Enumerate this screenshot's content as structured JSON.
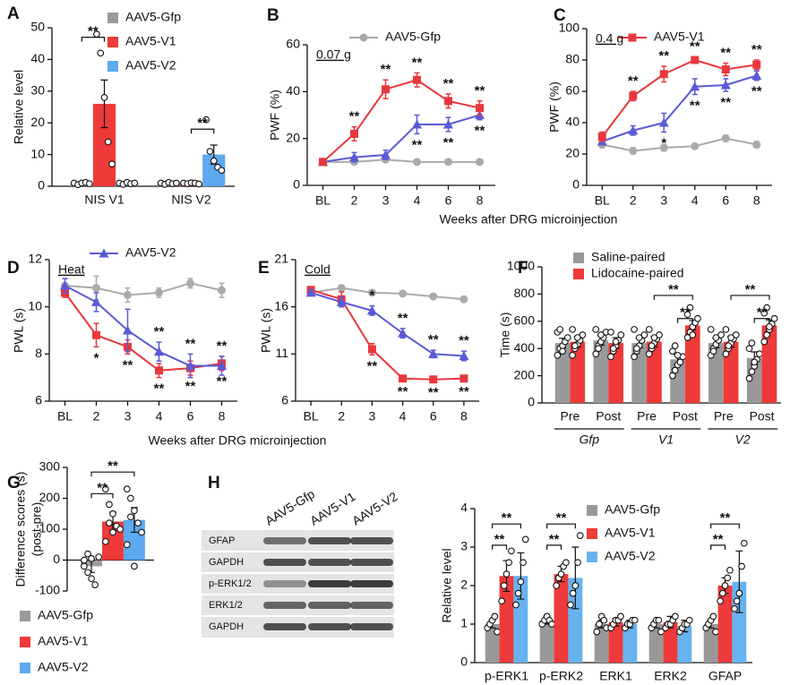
{
  "chart_data": [
    {
      "type": "bar",
      "panel": "A",
      "ylabel": "Relative level",
      "categories": [
        "NIS V1",
        "NIS V2"
      ],
      "series": [
        {
          "name": "AAV5-Gfp",
          "color": "#999999",
          "values": [
            1,
            1
          ],
          "errors": [
            0.3,
            0.3
          ],
          "points": [
            [
              1,
              0.5,
              1,
              1.2,
              0.8
            ],
            [
              1,
              0.6,
              1.2,
              0.8,
              1
            ]
          ]
        },
        {
          "name": "AAV5-V1",
          "color": "#ee3a3a",
          "values": [
            26,
            1
          ],
          "errors": [
            7.5,
            0.2
          ],
          "points": [
            [
              48,
              42,
              28,
              14,
              7
            ],
            [
              1,
              0.8,
              1.1,
              1,
              0.7
            ]
          ]
        },
        {
          "name": "AAV5-V2",
          "color": "#5ea9ef",
          "values": [
            1,
            10
          ],
          "errors": [
            0.3,
            3
          ],
          "points": [
            [
              1,
              0.6,
              1.2,
              0.8,
              1
            ],
            [
              21,
              11,
              8,
              6,
              5
            ]
          ]
        }
      ],
      "ylim": [
        0,
        50
      ],
      "yticks": [
        0,
        10,
        20,
        30,
        40,
        50
      ],
      "brackets": [
        "**",
        "**"
      ]
    },
    {
      "type": "line",
      "panel": "B",
      "ylabel": "PWF (%)",
      "annotation": "0.07 g",
      "xlabel": "Weeks after DRG microinjection",
      "categories": [
        "BL",
        "2",
        "3",
        "4",
        "6",
        "8"
      ],
      "series": [
        {
          "name": "AAV5-Gfp",
          "color": "#aaaaaa",
          "marker": "circle",
          "values": [
            10,
            10,
            11,
            10,
            10,
            10
          ],
          "errors": [
            1,
            1,
            1,
            0.5,
            0.5,
            0.5
          ]
        },
        {
          "color": "#5a5ad6",
          "marker": "triangle",
          "values": [
            10,
            12,
            13,
            26,
            26,
            30
          ],
          "errors": [
            1,
            2,
            2,
            4,
            3,
            2
          ],
          "labels": [
            null,
            null,
            null,
            "**",
            "**",
            "**"
          ]
        },
        {
          "color": "#e8383d",
          "marker": "square",
          "values": [
            10,
            22,
            41,
            45,
            36,
            33
          ],
          "errors": [
            1,
            3,
            4,
            3,
            3,
            3
          ],
          "labels": [
            null,
            "**",
            "**",
            "**",
            "**",
            "**"
          ]
        }
      ],
      "ylim": [
        0,
        60
      ],
      "yticks": [
        0,
        20,
        40,
        60
      ]
    },
    {
      "type": "line",
      "panel": "C",
      "ylabel": "PWF (%)",
      "annotation": "0.4 g",
      "categories": [
        "BL",
        "2",
        "3",
        "4",
        "6",
        "8"
      ],
      "series": [
        {
          "color": "#aaaaaa",
          "marker": "circle",
          "values": [
            26,
            22,
            24,
            25,
            30,
            26
          ],
          "errors": [
            2,
            2,
            2,
            1,
            2,
            2
          ]
        },
        {
          "color": "#5a5ad6",
          "marker": "triangle",
          "values": [
            28,
            35,
            40,
            63,
            64,
            70
          ],
          "errors": [
            2,
            3,
            6,
            5,
            4,
            3
          ],
          "labels": [
            null,
            null,
            "*",
            "**",
            "**",
            "**"
          ]
        },
        {
          "name": "AAV5-V1",
          "color": "#e8383d",
          "marker": "square",
          "values": [
            31,
            57,
            71,
            80,
            74,
            77
          ],
          "errors": [
            3,
            3,
            5,
            2,
            4,
            3
          ],
          "labels": [
            null,
            "**",
            "**",
            "**",
            "**",
            "**"
          ]
        }
      ],
      "ylim": [
        0,
        100
      ],
      "yticks": [
        0,
        20,
        40,
        60,
        80,
        100
      ]
    },
    {
      "type": "line",
      "panel": "D",
      "ylabel": "PWL (s)",
      "annotation": "Heat",
      "xlabel": "Weeks after DRG microinjection",
      "categories": [
        "BL",
        "2",
        "3",
        "4",
        "6",
        "8"
      ],
      "series": [
        {
          "color": "#aaaaaa",
          "marker": "circle",
          "values": [
            10.9,
            10.8,
            10.5,
            10.6,
            11.0,
            10.7
          ],
          "errors": [
            0.3,
            0.5,
            0.3,
            0.2,
            0.2,
            0.3
          ]
        },
        {
          "color": "#e8383d",
          "marker": "square",
          "values": [
            10.6,
            8.8,
            8.3,
            7.3,
            7.4,
            7.6
          ],
          "errors": [
            0.2,
            0.5,
            0.3,
            0.3,
            0.3,
            0.3
          ],
          "labels": [
            null,
            "*",
            "**",
            "**",
            "**",
            "**"
          ]
        },
        {
          "name": "AAV5-V2",
          "color": "#5a5ad6",
          "marker": "triangle",
          "values": [
            10.9,
            10.2,
            9.0,
            8.1,
            7.5,
            7.5
          ],
          "errors": [
            0.3,
            0.4,
            0.9,
            0.4,
            0.5,
            0.4
          ],
          "labels": [
            null,
            null,
            null,
            "**",
            "**",
            "**"
          ]
        }
      ],
      "ylim": [
        6,
        12
      ],
      "yticks": [
        6,
        8,
        10,
        12
      ]
    },
    {
      "type": "line",
      "panel": "E",
      "ylabel": "PWL (s)",
      "annotation": "Cold",
      "categories": [
        "BL",
        "2",
        "3",
        "4",
        "6",
        "8"
      ],
      "series": [
        {
          "color": "#aaaaaa",
          "marker": "circle",
          "values": [
            17.5,
            18,
            17.5,
            17.4,
            17.1,
            16.8
          ],
          "errors": [
            0.3,
            0.2,
            0.2,
            0.2,
            0.2,
            0.2
          ]
        },
        {
          "color": "#e8383d",
          "marker": "square",
          "values": [
            17.8,
            16.8,
            11.5,
            8.4,
            8.3,
            8.4
          ],
          "errors": [
            0.3,
            0.8,
            0.6,
            0.2,
            0.2,
            0.2
          ],
          "labels": [
            null,
            null,
            "**",
            "**",
            "**",
            "**"
          ]
        },
        {
          "color": "#5a5ad6",
          "marker": "triangle",
          "values": [
            17.5,
            16.5,
            15.6,
            13.2,
            11.0,
            10.8
          ],
          "errors": [
            0.3,
            0.5,
            0.5,
            0.5,
            0.4,
            0.5
          ],
          "labels": [
            null,
            null,
            "*",
            "**",
            "**",
            "**"
          ]
        }
      ],
      "ylim": [
        6,
        21
      ],
      "yticks": [
        6,
        11,
        16,
        21
      ]
    },
    {
      "type": "bar",
      "panel": "F",
      "ylabel": "Time (s)",
      "categories": [
        "Pre",
        "Post",
        "Pre",
        "Post",
        "Pre",
        "Post"
      ],
      "groups": [
        "Gfp",
        "V1",
        "V2"
      ],
      "series": [
        {
          "name": "Saline-paired",
          "color": "#999999",
          "values": [
            440,
            460,
            440,
            320,
            440,
            330
          ],
          "errors": [
            35,
            35,
            35,
            35,
            35,
            45
          ],
          "points": [
            [
              350,
              400,
              420,
              450,
              480,
              520,
              540,
              380
            ],
            [
              360,
              420,
              450,
              480,
              520,
              540,
              400,
              500
            ],
            [
              340,
              380,
              420,
              460,
              500,
              540,
              400,
              480
            ],
            [
              200,
              240,
              280,
              300,
              340,
              380,
              420,
              350
            ],
            [
              350,
              400,
              430,
              460,
              500,
              540,
              380,
              480
            ],
            [
              180,
              230,
              270,
              320,
              360,
              400,
              440,
              300
            ]
          ]
        },
        {
          "name": "Lidocaine-paired",
          "color": "#ee3a3a",
          "values": [
            450,
            440,
            450,
            570,
            450,
            570
          ],
          "errors": [
            40,
            40,
            40,
            35,
            40,
            40
          ],
          "points": [
            [
              350,
              400,
              430,
              460,
              500,
              540,
              420,
              480
            ],
            [
              340,
              380,
              420,
              460,
              500,
              520,
              400,
              450
            ],
            [
              360,
              400,
              440,
              470,
              500,
              540,
              420,
              480
            ],
            [
              480,
              520,
              560,
              590,
              620,
              650,
              700,
              500
            ],
            [
              360,
              400,
              440,
              470,
              500,
              540,
              420,
              480
            ],
            [
              450,
              500,
              540,
              580,
              620,
              660,
              700,
              560
            ]
          ]
        }
      ],
      "ylim": [
        0,
        1000
      ],
      "yticks": [
        0,
        200,
        400,
        600,
        800,
        1000
      ],
      "brackets": [
        "**",
        "**",
        "**",
        "**"
      ]
    },
    {
      "type": "bar",
      "panel": "G",
      "ylabel": "Difference scores (s)",
      "ylabel2": "(post-pre)",
      "series": [
        {
          "name": "AAV5-Gfp",
          "color": "#999999",
          "values": [
            -20
          ],
          "errors": [
            20
          ],
          "points": [
            [
              0,
              -40,
              -60,
              -80,
              10,
              -20,
              20,
              5
            ]
          ]
        },
        {
          "name": "AAV5-V1",
          "color": "#ee3a3a",
          "values": [
            125
          ],
          "errors": [
            30
          ],
          "points": [
            [
              230,
              180,
              150,
              110,
              100,
              60,
              120,
              90
            ]
          ]
        },
        {
          "name": "AAV5-V2",
          "color": "#5ea9ef",
          "values": [
            130
          ],
          "errors": [
            40
          ],
          "points": [
            [
              230,
              200,
              160,
              120,
              90,
              50,
              140,
              -20
            ]
          ]
        }
      ],
      "ylim": [
        -100,
        300
      ],
      "yticks": [
        -100,
        0,
        100,
        200,
        300
      ],
      "brackets": [
        "**",
        "**"
      ]
    },
    {
      "type": "blot",
      "panel": "H",
      "lanes": [
        "AAV5-Gfp",
        "AAV5-V1",
        "AAV5-V2"
      ],
      "rows": [
        "GFAP",
        "GAPDH",
        "p-ERK1/2",
        "ERK1/2",
        "GAPDH"
      ]
    },
    {
      "type": "bar",
      "ylabel": "Relative level",
      "categories": [
        "p-ERK1",
        "p-ERK2",
        "ERK1",
        "ERK2",
        "GFAP"
      ],
      "series": [
        {
          "name": "AAV5-Gfp",
          "color": "#999999",
          "values": [
            1,
            1.1,
            1,
            1,
            1
          ],
          "errors": [
            0.1,
            0.1,
            0.1,
            0.1,
            0.1
          ],
          "points": [
            [
              0.9,
              1.0,
              1.1,
              1.2,
              0.8
            ],
            [
              1.0,
              1.1,
              1.2,
              1.1,
              1.0
            ],
            [
              0.8,
              1.0,
              1.2,
              1.1,
              0.9
            ],
            [
              0.9,
              1.0,
              1.1,
              1.1,
              0.8
            ],
            [
              0.9,
              1.0,
              1.1,
              1.2,
              0.8
            ]
          ]
        },
        {
          "name": "AAV5-V1",
          "color": "#ee3a3a",
          "values": [
            2.25,
            2.3,
            1.05,
            1.05,
            2.0
          ],
          "errors": [
            0.4,
            0.2,
            0.1,
            0.15,
            0.2
          ],
          "points": [
            [
              1.6,
              2.0,
              2.3,
              2.6,
              2.9
            ],
            [
              2.0,
              2.2,
              2.3,
              2.5,
              2.6
            ],
            [
              0.9,
              1.0,
              1.1,
              1.1,
              1.2
            ],
            [
              0.9,
              1.0,
              1.0,
              1.1,
              1.2
            ],
            [
              1.6,
              1.8,
              2.0,
              2.2,
              2.4
            ]
          ]
        },
        {
          "name": "AAV5-V2",
          "color": "#67b3f0",
          "values": [
            2.25,
            2.2,
            1.0,
            0.95,
            2.1
          ],
          "errors": [
            0.6,
            0.8,
            0.1,
            0.15,
            0.8
          ],
          "points": [
            [
              1.5,
              1.8,
              2.1,
              2.6,
              3.2
            ],
            [
              1.5,
              1.8,
              2.0,
              2.6,
              3.3
            ],
            [
              0.9,
              1.0,
              1.0,
              1.1,
              1.1
            ],
            [
              0.8,
              0.9,
              1.0,
              1.0,
              1.1
            ],
            [
              1.4,
              1.6,
              1.8,
              2.5,
              3.1
            ]
          ]
        }
      ],
      "ylim": [
        0,
        4
      ],
      "yticks": [
        0,
        1,
        2,
        3,
        4
      ],
      "brackets": [
        "**",
        "**",
        "**",
        "**",
        "**",
        "**"
      ]
    }
  ]
}
